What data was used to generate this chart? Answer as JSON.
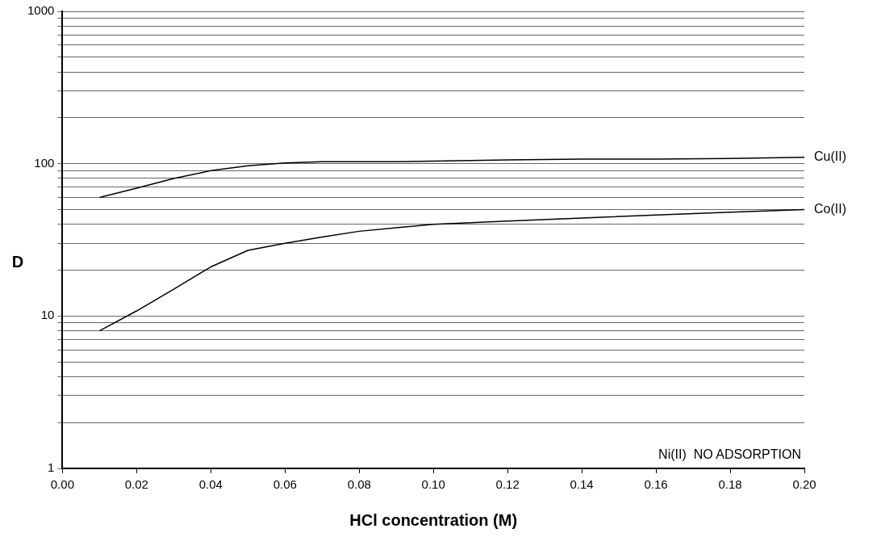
{
  "chart_data": {
    "type": "line",
    "xlabel": "HCl concentration (M)",
    "ylabel": "D",
    "log": "y",
    "grid": "y",
    "legend": false,
    "marker": "none",
    "line_style": "solid",
    "xlim": [
      0,
      0.2
    ],
    "xticks": [
      {
        "value": 0,
        "label": "0.00"
      },
      {
        "value": 0.02,
        "label": "0.02"
      },
      {
        "value": 0.04,
        "label": "0.04"
      },
      {
        "value": 0.06,
        "label": "0.06"
      },
      {
        "value": 0.08,
        "label": "0.08"
      },
      {
        "value": 0.1,
        "label": "0.10"
      },
      {
        "value": 0.12,
        "label": "0.12"
      },
      {
        "value": 0.14,
        "label": "0.14"
      },
      {
        "value": 0.16,
        "label": "0.16"
      },
      {
        "value": 0.18,
        "label": "0.18"
      },
      {
        "value": 0.2,
        "label": "0.20"
      }
    ],
    "ylim": [
      1,
      1000
    ],
    "yticks": [
      1,
      {
        "value": 2,
        "label": null
      },
      {
        "value": 3,
        "label": null
      },
      {
        "value": 4,
        "label": null
      },
      {
        "value": 5,
        "label": null
      },
      {
        "value": 6,
        "label": null
      },
      {
        "value": 7,
        "label": null
      },
      {
        "value": 8,
        "label": null
      },
      {
        "value": 9,
        "label": null
      },
      10,
      {
        "value": 20,
        "label": null
      },
      {
        "value": 30,
        "label": null
      },
      {
        "value": 40,
        "label": null
      },
      {
        "value": 50,
        "label": null
      },
      {
        "value": 60,
        "label": null
      },
      {
        "value": 70,
        "label": null
      },
      {
        "value": 80,
        "label": null
      },
      {
        "value": 90,
        "label": null
      },
      100,
      {
        "value": 200,
        "label": null
      },
      {
        "value": 300,
        "label": null
      },
      {
        "value": 400,
        "label": null
      },
      {
        "value": 500,
        "label": null
      },
      {
        "value": 600,
        "label": null
      },
      {
        "value": 700,
        "label": null
      },
      {
        "value": 800,
        "label": null
      },
      {
        "value": 900,
        "label": null
      },
      1000
    ],
    "x": [
      0.01,
      0.02,
      0.03,
      0.04,
      0.05,
      0.06,
      0.07,
      0.08,
      0.09,
      0.1,
      0.12,
      0.14,
      0.16,
      0.18,
      0.2
    ],
    "series": [
      {
        "name": "Cu(II)",
        "color": "#000000",
        "values": [
          60,
          69,
          80,
          90,
          97,
          101,
          103,
          103,
          103,
          104,
          106,
          107,
          107,
          108,
          110
        ]
      },
      {
        "name": "Co(II)",
        "color": "#000000",
        "values": [
          8,
          10.8,
          15,
          21,
          27,
          30,
          33,
          36,
          38,
          40,
          42,
          44,
          46,
          48,
          50
        ]
      }
    ],
    "annotations": [
      "Ni(II)  NO ADSORPTION"
    ]
  }
}
